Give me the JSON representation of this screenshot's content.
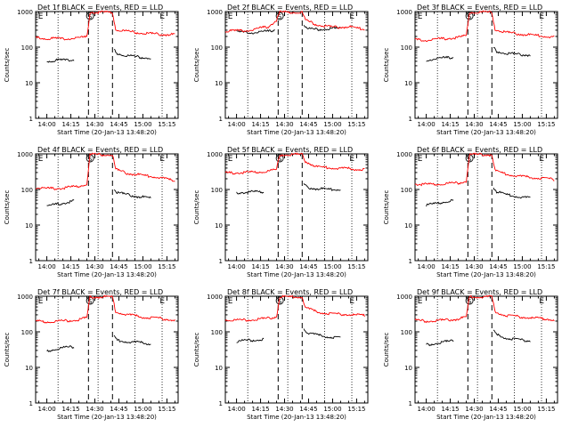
{
  "figure": {
    "start_time_label": "Start Time (20-Jan-13 13:48:20)",
    "ylabel": "Counts/sec",
    "y_tick_labels": [
      "1",
      "10",
      "100",
      "1000"
    ],
    "x_tick_labels": [
      "14:00",
      "14:15",
      "14:30",
      "14:45",
      "15:00",
      "15:15"
    ],
    "marker_labels": [
      "E",
      "S",
      "E"
    ],
    "colors": {
      "events": "#000000",
      "lld": "#ff0000"
    }
  },
  "chart_data": [
    {
      "type": "line",
      "title": "Det 1f BLACK = Events, RED = LLD",
      "xlabel": "Start Time (20-Jan-13 13:48:20)",
      "ylabel": "Counts/sec",
      "ylim": [
        1,
        1000
      ],
      "y_scale": "log",
      "xlim": [
        "13:53",
        "15:22"
      ],
      "x_ticks": [
        "14:00",
        "14:15",
        "14:30",
        "14:45",
        "15:00",
        "15:15"
      ],
      "dotted_lines": [
        "14:07",
        "14:32",
        "14:55",
        "15:12"
      ],
      "dashed_lines": [
        "14:26",
        "14:41"
      ],
      "markers": [
        {
          "label": "E",
          "x": "13:54"
        },
        {
          "label": "S",
          "x": "14:27"
        },
        {
          "label": "E",
          "x": "15:10"
        }
      ],
      "series": [
        {
          "name": "Events",
          "color": "#000000",
          "x": [
            "14:00",
            "14:06",
            "14:12",
            "14:17",
            "14:42",
            "14:44",
            "14:50",
            "14:58",
            "15:05"
          ],
          "y": [
            42,
            45,
            45,
            47,
            90,
            70,
            60,
            55,
            52
          ]
        },
        {
          "name": "LLD",
          "color": "#ff0000",
          "x": [
            "13:53",
            "14:00",
            "14:10",
            "14:20",
            "14:25",
            "14:27",
            "14:41",
            "14:43",
            "14:50",
            "15:00",
            "15:10",
            "15:20"
          ],
          "y": [
            190,
            185,
            180,
            190,
            200,
            1000,
            1000,
            330,
            290,
            260,
            240,
            235
          ]
        }
      ]
    },
    {
      "type": "line",
      "title": "Det 2f BLACK = Events, RED = LLD",
      "xlabel": "Start Time (20-Jan-13 13:48:20)",
      "ylabel": "Counts/sec",
      "ylim": [
        1,
        1000
      ],
      "y_scale": "log",
      "xlim": [
        "13:53",
        "15:22"
      ],
      "x_ticks": [
        "14:00",
        "14:15",
        "14:30",
        "14:45",
        "15:00",
        "15:15"
      ],
      "dotted_lines": [
        "14:07",
        "14:32",
        "14:55",
        "15:12"
      ],
      "dashed_lines": [
        "14:26",
        "14:41"
      ],
      "markers": [
        {
          "label": "E",
          "x": "13:54"
        },
        {
          "label": "S",
          "x": "14:27"
        },
        {
          "label": "E",
          "x": "15:10"
        }
      ],
      "series": [
        {
          "name": "Events",
          "color": "#000000",
          "x": [
            "14:00",
            "14:10",
            "14:20",
            "14:24",
            "14:42",
            "14:44",
            "14:50",
            "15:00",
            "15:05"
          ],
          "y": [
            280,
            270,
            290,
            330,
            460,
            340,
            330,
            350,
            350
          ]
        },
        {
          "name": "LLD",
          "color": "#ff0000",
          "x": [
            "13:53",
            "14:00",
            "14:10",
            "14:20",
            "14:25",
            "14:27",
            "14:41",
            "14:43",
            "14:50",
            "15:00",
            "15:10",
            "15:20"
          ],
          "y": [
            300,
            300,
            320,
            400,
            600,
            1000,
            1000,
            600,
            450,
            380,
            390,
            330
          ]
        }
      ]
    },
    {
      "type": "line",
      "title": "Det 3f BLACK = Events, RED = LLD",
      "xlabel": "Start Time (20-Jan-13 13:48:20)",
      "ylabel": "Counts/sec",
      "ylim": [
        1,
        1000
      ],
      "y_scale": "log",
      "xlim": [
        "13:53",
        "15:22"
      ],
      "x_ticks": [
        "14:00",
        "14:15",
        "14:30",
        "14:45",
        "15:00",
        "15:15"
      ],
      "dotted_lines": [
        "14:07",
        "14:32",
        "14:55",
        "15:12"
      ],
      "dashed_lines": [
        "14:26",
        "14:41"
      ],
      "markers": [
        {
          "label": "E",
          "x": "13:54"
        },
        {
          "label": "S",
          "x": "14:27"
        },
        {
          "label": "E",
          "x": "15:10"
        }
      ],
      "series": [
        {
          "name": "Events",
          "color": "#000000",
          "x": [
            "14:00",
            "14:06",
            "14:12",
            "14:17",
            "14:42",
            "14:44",
            "14:50",
            "14:58",
            "15:05"
          ],
          "y": [
            45,
            50,
            52,
            55,
            100,
            80,
            70,
            65,
            63
          ]
        },
        {
          "name": "LLD",
          "color": "#ff0000",
          "x": [
            "13:53",
            "14:00",
            "14:10",
            "14:20",
            "14:25",
            "14:27",
            "14:41",
            "14:43",
            "14:50",
            "15:00",
            "15:10",
            "15:20"
          ],
          "y": [
            170,
            165,
            180,
            195,
            220,
            1000,
            1000,
            330,
            270,
            240,
            220,
            200
          ]
        }
      ]
    },
    {
      "type": "line",
      "title": "Det 4f BLACK = Events, RED = LLD",
      "xlabel": "Start Time (20-Jan-13 13:48:20)",
      "ylabel": "Counts/sec",
      "ylim": [
        1,
        1000
      ],
      "y_scale": "log",
      "xlim": [
        "13:53",
        "15:22"
      ],
      "x_ticks": [
        "14:00",
        "14:15",
        "14:30",
        "14:45",
        "15:00",
        "15:15"
      ],
      "dotted_lines": [
        "14:07",
        "14:32",
        "14:55",
        "15:12"
      ],
      "dashed_lines": [
        "14:26",
        "14:41"
      ],
      "markers": [
        {
          "label": "E",
          "x": "13:54"
        },
        {
          "label": "S",
          "x": "14:27"
        },
        {
          "label": "E",
          "x": "15:10"
        }
      ],
      "series": [
        {
          "name": "Events",
          "color": "#000000",
          "x": [
            "14:00",
            "14:06",
            "14:12",
            "14:17",
            "14:42",
            "14:44",
            "14:50",
            "14:58",
            "15:05"
          ],
          "y": [
            35,
            40,
            45,
            50,
            110,
            85,
            75,
            65,
            60
          ]
        },
        {
          "name": "LLD",
          "color": "#ff0000",
          "x": [
            "13:53",
            "14:00",
            "14:10",
            "14:20",
            "14:25",
            "14:27",
            "14:41",
            "14:43",
            "14:50",
            "15:00",
            "15:10",
            "15:20"
          ],
          "y": [
            120,
            110,
            115,
            130,
            150,
            1000,
            1000,
            380,
            300,
            260,
            230,
            180
          ]
        }
      ]
    },
    {
      "type": "line",
      "title": "Det 5f BLACK = Events, RED = LLD",
      "xlabel": "Start Time (20-Jan-13 13:48:20)",
      "ylabel": "Counts/sec",
      "ylim": [
        1,
        1000
      ],
      "y_scale": "log",
      "xlim": [
        "13:53",
        "15:22"
      ],
      "x_ticks": [
        "14:00",
        "14:15",
        "14:30",
        "14:45",
        "15:00",
        "15:15"
      ],
      "dotted_lines": [
        "14:07",
        "14:32",
        "14:55",
        "15:12"
      ],
      "dashed_lines": [
        "14:26",
        "14:41"
      ],
      "markers": [
        {
          "label": "E",
          "x": "13:54"
        },
        {
          "label": "S",
          "x": "14:27"
        },
        {
          "label": "E",
          "x": "15:10"
        }
      ],
      "series": [
        {
          "name": "Events",
          "color": "#000000",
          "x": [
            "14:00",
            "14:06",
            "14:12",
            "14:17",
            "14:42",
            "14:44",
            "14:50",
            "14:58",
            "15:05"
          ],
          "y": [
            85,
            88,
            90,
            90,
            150,
            120,
            110,
            105,
            105
          ]
        },
        {
          "name": "LLD",
          "color": "#ff0000",
          "x": [
            "13:53",
            "14:00",
            "14:10",
            "14:20",
            "14:25",
            "14:27",
            "14:41",
            "14:43",
            "14:50",
            "15:00",
            "15:10",
            "15:20"
          ],
          "y": [
            300,
            310,
            320,
            340,
            380,
            1000,
            1000,
            650,
            450,
            420,
            400,
            380
          ]
        }
      ]
    },
    {
      "type": "line",
      "title": "Det 6f BLACK = Events, RED = LLD",
      "xlabel": "Start Time (20-Jan-13 13:48:20)",
      "ylabel": "Counts/sec",
      "ylim": [
        1,
        1000
      ],
      "y_scale": "log",
      "xlim": [
        "13:53",
        "15:22"
      ],
      "x_ticks": [
        "14:00",
        "14:15",
        "14:30",
        "14:45",
        "15:00",
        "15:15"
      ],
      "dotted_lines": [
        "14:07",
        "14:32",
        "14:55",
        "15:12"
      ],
      "dashed_lines": [
        "14:26",
        "14:41"
      ],
      "markers": [
        {
          "label": "E",
          "x": "13:54"
        },
        {
          "label": "S",
          "x": "14:27"
        },
        {
          "label": "E",
          "x": "15:10"
        }
      ],
      "series": [
        {
          "name": "Events",
          "color": "#000000",
          "x": [
            "14:00",
            "14:06",
            "14:12",
            "14:17",
            "14:42",
            "14:44",
            "14:50",
            "14:58",
            "15:05"
          ],
          "y": [
            38,
            42,
            48,
            52,
            120,
            90,
            75,
            65,
            60
          ]
        },
        {
          "name": "LLD",
          "color": "#ff0000",
          "x": [
            "13:53",
            "14:00",
            "14:10",
            "14:20",
            "14:25",
            "14:27",
            "14:41",
            "14:43",
            "14:50",
            "15:00",
            "15:10",
            "15:20"
          ],
          "y": [
            150,
            145,
            150,
            160,
            180,
            1000,
            1000,
            350,
            280,
            240,
            220,
            200
          ]
        }
      ]
    },
    {
      "type": "line",
      "title": "Det 7f BLACK = Events, RED = LLD",
      "xlabel": "Start Time (20-Jan-13 13:48:20)",
      "ylabel": "Counts/sec",
      "ylim": [
        1,
        1000
      ],
      "y_scale": "log",
      "xlim": [
        "13:53",
        "15:22"
      ],
      "x_ticks": [
        "14:00",
        "14:15",
        "14:30",
        "14:45",
        "15:00",
        "15:15"
      ],
      "dotted_lines": [
        "14:07",
        "14:32",
        "14:55",
        "15:12"
      ],
      "dashed_lines": [
        "14:26",
        "14:41"
      ],
      "markers": [
        {
          "label": "E",
          "x": "13:54"
        },
        {
          "label": "S",
          "x": "14:27"
        },
        {
          "label": "E",
          "x": "15:10"
        }
      ],
      "series": [
        {
          "name": "Events",
          "color": "#000000",
          "x": [
            "14:00",
            "14:06",
            "14:12",
            "14:17",
            "14:42",
            "14:44",
            "14:50",
            "14:58",
            "15:05"
          ],
          "y": [
            30,
            35,
            38,
            40,
            80,
            60,
            55,
            52,
            48
          ]
        },
        {
          "name": "LLD",
          "color": "#ff0000",
          "x": [
            "13:53",
            "14:00",
            "14:10",
            "14:20",
            "14:25",
            "14:27",
            "14:41",
            "14:43",
            "14:50",
            "15:00",
            "15:10",
            "15:20"
          ],
          "y": [
            210,
            200,
            210,
            230,
            260,
            1000,
            1000,
            380,
            320,
            270,
            250,
            220
          ]
        }
      ]
    },
    {
      "type": "line",
      "title": "Det 8f BLACK = Events, RED = LLD",
      "xlabel": "Start Time (20-Jan-13 13:48:20)",
      "ylabel": "Counts/sec",
      "ylim": [
        1,
        1000
      ],
      "y_scale": "log",
      "xlim": [
        "13:53",
        "15:22"
      ],
      "x_ticks": [
        "14:00",
        "14:15",
        "14:30",
        "14:45",
        "15:00",
        "15:15"
      ],
      "dotted_lines": [
        "14:07",
        "14:32",
        "14:55",
        "15:12"
      ],
      "dashed_lines": [
        "14:26",
        "14:41"
      ],
      "markers": [
        {
          "label": "E",
          "x": "13:54"
        },
        {
          "label": "S",
          "x": "14:27"
        },
        {
          "label": "E",
          "x": "15:10"
        }
      ],
      "series": [
        {
          "name": "Events",
          "color": "#000000",
          "x": [
            "14:00",
            "14:06",
            "14:12",
            "14:17",
            "14:42",
            "14:44",
            "14:50",
            "14:58",
            "15:05"
          ],
          "y": [
            55,
            60,
            62,
            65,
            130,
            100,
            85,
            75,
            70
          ]
        },
        {
          "name": "LLD",
          "color": "#ff0000",
          "x": [
            "13:53",
            "14:00",
            "14:10",
            "14:20",
            "14:25",
            "14:27",
            "14:41",
            "14:43",
            "14:50",
            "15:00",
            "15:10",
            "15:20"
          ],
          "y": [
            230,
            220,
            230,
            250,
            280,
            1000,
            1000,
            500,
            380,
            330,
            320,
            300
          ]
        }
      ]
    },
    {
      "type": "line",
      "title": "Det 9f BLACK = Events, RED = LLD",
      "xlabel": "Start Time (20-Jan-13 13:48:20)",
      "ylabel": "Counts/sec",
      "ylim": [
        1,
        1000
      ],
      "y_scale": "log",
      "xlim": [
        "13:53",
        "15:22"
      ],
      "x_ticks": [
        "14:00",
        "14:15",
        "14:30",
        "14:45",
        "15:00",
        "15:15"
      ],
      "dotted_lines": [
        "14:07",
        "14:32",
        "14:55",
        "15:12"
      ],
      "dashed_lines": [
        "14:26",
        "14:41"
      ],
      "markers": [
        {
          "label": "E",
          "x": "13:54"
        },
        {
          "label": "S",
          "x": "14:27"
        },
        {
          "label": "E",
          "x": "15:10"
        }
      ],
      "series": [
        {
          "name": "Events",
          "color": "#000000",
          "x": [
            "14:00",
            "14:06",
            "14:12",
            "14:17",
            "14:42",
            "14:44",
            "14:50",
            "14:58",
            "15:05"
          ],
          "y": [
            45,
            50,
            55,
            58,
            110,
            85,
            70,
            62,
            58
          ]
        },
        {
          "name": "LLD",
          "color": "#ff0000",
          "x": [
            "13:53",
            "14:00",
            "14:10",
            "14:20",
            "14:25",
            "14:27",
            "14:41",
            "14:43",
            "14:50",
            "15:00",
            "15:10",
            "15:20"
          ],
          "y": [
            220,
            210,
            220,
            240,
            270,
            1000,
            1000,
            380,
            300,
            270,
            250,
            230
          ]
        }
      ]
    }
  ]
}
